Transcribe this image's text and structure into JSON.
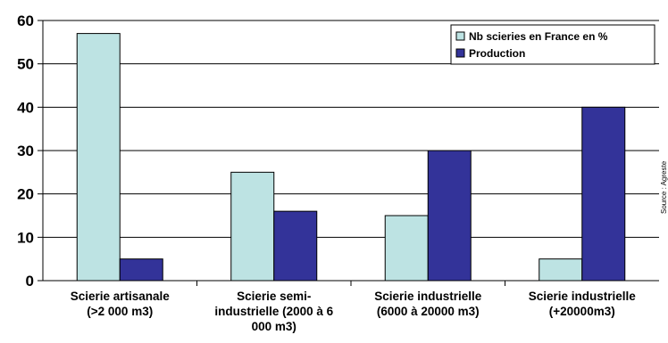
{
  "chart_data": {
    "type": "bar",
    "categories": [
      [
        "Scierie artisanale",
        "(>2 000 m3)"
      ],
      [
        "Scierie semi-",
        "industrielle (2000 à 6",
        "000 m3)"
      ],
      [
        "Scierie industrielle",
        "(6000 à 20000 m3)"
      ],
      [
        "Scierie industrielle",
        "(+20000m3)"
      ]
    ],
    "series": [
      {
        "name": "Nb scieries en France en %",
        "values": [
          57,
          25,
          15,
          5
        ],
        "color": "#bde3e3"
      },
      {
        "name": "Production",
        "values": [
          5,
          16,
          30,
          40
        ],
        "color": "#333399"
      }
    ],
    "ylim": [
      0,
      60
    ],
    "yticks": [
      "0",
      "10",
      "20",
      "30",
      "40",
      "50",
      "60"
    ],
    "grid": true,
    "legend_position": "top-right",
    "source": "Source : Agreste"
  }
}
